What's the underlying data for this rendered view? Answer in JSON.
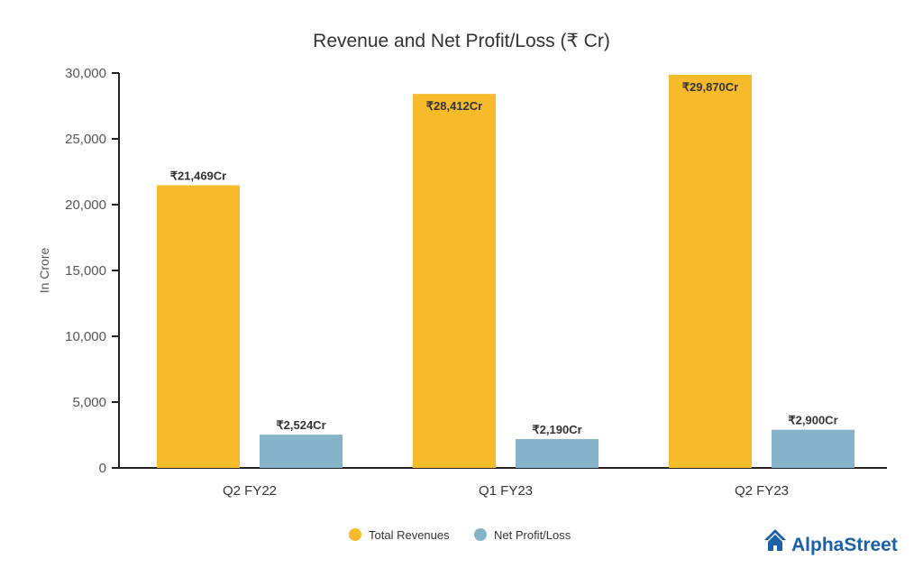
{
  "chart_data": {
    "type": "bar",
    "title": "Revenue and Net Profit/Loss (₹ Cr)",
    "ylabel": "In Crore",
    "xlabel": "",
    "ylim": [
      0,
      30000
    ],
    "yticks": [
      0,
      5000,
      10000,
      15000,
      20000,
      25000,
      30000
    ],
    "ytick_labels": [
      "0",
      "5,000",
      "10,000",
      "15,000",
      "20,000",
      "25,000",
      "30,000"
    ],
    "categories": [
      "Q2 FY22",
      "Q1 FY23",
      "Q2 FY23"
    ],
    "series": [
      {
        "name": "Total Revenues",
        "color": "#F6BA2A",
        "values": [
          21469,
          28412,
          29870
        ],
        "labels": [
          "₹21,469Cr",
          "₹28,412Cr",
          "₹29,870Cr"
        ]
      },
      {
        "name": "Net Profit/Loss",
        "color": "#86B3C9",
        "values": [
          2524,
          2190,
          2900
        ],
        "labels": [
          "₹2,524Cr",
          "₹2,190Cr",
          "₹2,900Cr"
        ]
      }
    ],
    "grid": false,
    "legend_position": "bottom-center"
  },
  "brand": {
    "name": "AlphaStreet",
    "color": "#1C5FAA",
    "icon": "house-icon"
  }
}
